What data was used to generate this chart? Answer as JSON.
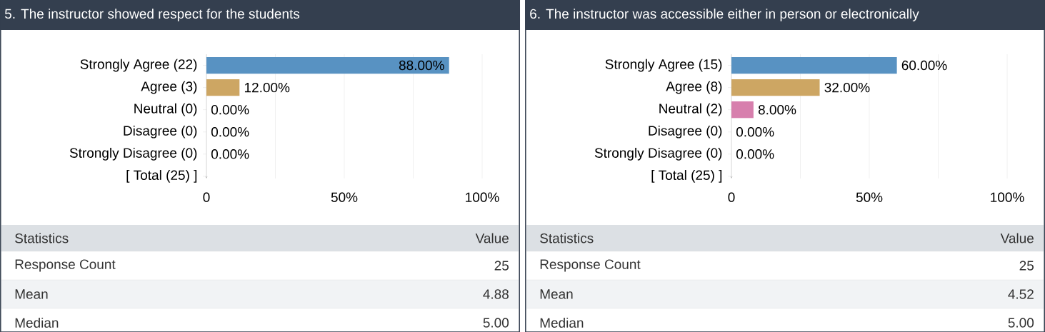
{
  "chart_data": [
    {
      "type": "bar",
      "orientation": "horizontal",
      "title": "5. The instructor showed respect for the students",
      "categories": [
        "Strongly Agree (22)",
        "Agree (3)",
        "Neutral (0)",
        "Disagree (0)",
        "Strongly Disagree (0)",
        "[ Total (25) ]"
      ],
      "values": [
        88,
        12,
        0,
        0,
        0,
        null
      ],
      "value_labels": [
        "88.00%",
        "12.00%",
        "0.00%",
        "0.00%",
        "0.00%",
        null
      ],
      "colors": [
        "#5892c2",
        "#cda663",
        "#d77fad",
        "#8fbf6a",
        "#9a7fc4",
        null
      ],
      "xlim": [
        0,
        100
      ],
      "xticks": [
        0,
        {
          "value": 25,
          "label": null
        },
        {
          "value": 50,
          "label": "50%"
        },
        {
          "value": 75,
          "label": null
        },
        {
          "value": 100,
          "label": "100%"
        }
      ],
      "grid": "x"
    },
    {
      "type": "other",
      "categories": [
        "Response Count",
        "Mean",
        "Median"
      ],
      "values": [
        25,
        4.88,
        5.0
      ],
      "value_labels": [
        "25",
        "4.88",
        "5.00"
      ],
      "annotations": [
        "Statistics",
        "Value"
      ]
    },
    {
      "type": "bar",
      "orientation": "horizontal",
      "title": "6. The instructor was accessible either in person or electronically",
      "categories": [
        "Strongly Agree (15)",
        "Agree (8)",
        "Neutral (2)",
        "Disagree (0)",
        "Strongly Disagree (0)",
        "[ Total (25) ]"
      ],
      "values": [
        60,
        32,
        8,
        0,
        0,
        null
      ],
      "value_labels": [
        "60.00%",
        "32.00%",
        "8.00%",
        "0.00%",
        "0.00%",
        null
      ],
      "colors": [
        "#5892c2",
        "#cda663",
        "#d77fad",
        "#8fbf6a",
        "#9a7fc4",
        null
      ],
      "xlim": [
        0,
        100
      ],
      "xticks": [
        0,
        {
          "value": 25,
          "label": null
        },
        {
          "value": 50,
          "label": "50%"
        },
        {
          "value": 75,
          "label": null
        },
        {
          "value": 100,
          "label": "100%"
        }
      ],
      "grid": "x"
    },
    {
      "type": "other",
      "categories": [
        "Response Count",
        "Mean",
        "Median"
      ],
      "values": [
        25,
        4.52,
        5.0
      ],
      "value_labels": [
        "25",
        "4.52",
        "5.00"
      ],
      "annotations": [
        "Statistics",
        "Value"
      ]
    }
  ]
}
